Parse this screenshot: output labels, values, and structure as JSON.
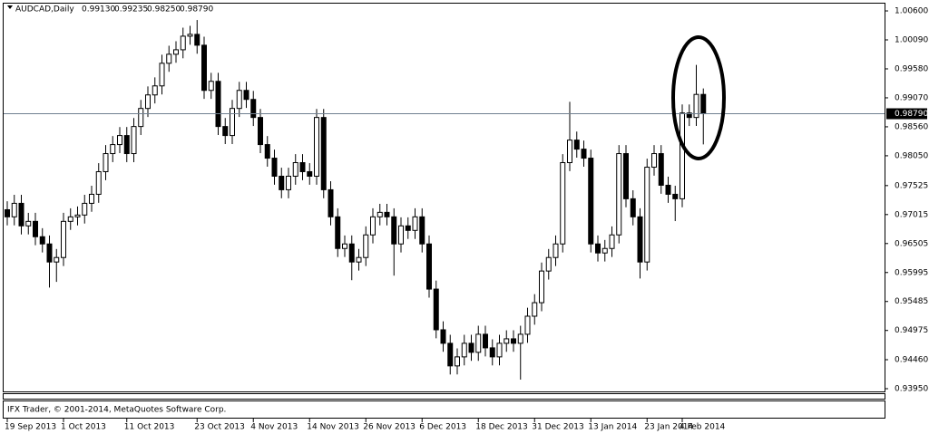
{
  "chart_data": {
    "type": "candlestick",
    "title": "AUDCAD,Daily",
    "header_values": [
      "0.99130",
      "0.99235",
      "0.98250",
      "0.98790"
    ],
    "footer": "IFX Trader, © 2001-2014, MetaQuotes Software Corp.",
    "current_price": {
      "value": 0.9879,
      "label": "0.98790"
    },
    "categories": [
      "19 Sep 2013",
      null,
      null,
      null,
      null,
      null,
      null,
      null,
      "1 Oct 2013",
      null,
      null,
      null,
      null,
      null,
      null,
      null,
      null,
      "11 Oct 2013",
      null,
      null,
      null,
      null,
      null,
      null,
      null,
      null,
      null,
      "23 Oct 2013",
      null,
      null,
      null,
      null,
      null,
      null,
      null,
      "4 Nov 2013",
      null,
      null,
      null,
      null,
      null,
      null,
      null,
      "14 Nov 2013",
      null,
      null,
      null,
      null,
      null,
      null,
      null,
      "26 Nov 2013",
      null,
      null,
      null,
      null,
      null,
      null,
      null,
      "6 Dec 2013",
      null,
      null,
      null,
      null,
      null,
      null,
      null,
      "18 Dec 2013",
      null,
      null,
      null,
      null,
      null,
      null,
      null,
      "31 Dec 2013",
      null,
      null,
      null,
      null,
      null,
      null,
      null,
      "13 Jan 2014",
      null,
      null,
      null,
      null,
      null,
      null,
      null,
      "23 Jan 2014",
      null,
      null,
      null,
      null,
      "4 Feb 2014",
      null,
      null,
      null
    ],
    "open": [
      0.971,
      0.96975,
      0.97213,
      0.96816,
      0.96895,
      0.96625,
      0.96498,
      0.9618,
      0.96259,
      0.96895,
      0.96975,
      0.97007,
      0.97213,
      0.97372,
      0.9777,
      0.98088,
      0.98247,
      0.98406,
      0.98088,
      0.98565,
      0.98883,
      0.99121,
      0.9928,
      0.99678,
      0.99837,
      0.99916,
      1.00155,
      1.00187,
      0.99996,
      0.99201,
      0.9936,
      0.98565,
      0.98406,
      0.98883,
      0.99201,
      0.99042,
      0.98724,
      0.98247,
      0.98008,
      0.9769,
      0.97452,
      0.9769,
      0.97929,
      0.9777,
      0.9769,
      0.98724,
      0.97452,
      0.96975,
      0.96418,
      0.96498,
      0.9618,
      0.96259,
      0.96657,
      0.96975,
      0.97054,
      0.96975,
      0.96498,
      0.96816,
      0.96736,
      0.96975,
      0.96498,
      0.95703,
      0.94987,
      0.94749,
      0.94351,
      0.9451,
      0.94749,
      0.9459,
      0.94908,
      0.94669,
      0.9451,
      0.94749,
      0.94828,
      0.94749,
      0.94908,
      0.95226,
      0.95464,
      0.96021,
      0.96259,
      0.96498,
      0.97929,
      0.98326,
      0.98167,
      0.98008,
      0.96498,
      0.96339,
      0.96418,
      0.96657,
      0.98088,
      0.97293,
      0.96975,
      0.9618,
      0.97849,
      0.98088,
      0.97531,
      0.97372,
      0.97293,
      0.98803,
      0.98724,
      0.9913
    ],
    "high": [
      0.9725,
      0.97363,
      0.97363,
      0.97045,
      0.97045,
      0.96775,
      0.96648,
      0.96409,
      0.97045,
      0.97125,
      0.97157,
      0.97363,
      0.97522,
      0.9792,
      0.98238,
      0.98397,
      0.98556,
      0.98556,
      0.98715,
      0.99033,
      0.99271,
      0.9943,
      0.99828,
      0.99987,
      1.00066,
      1.00305,
      1.00337,
      1.0044,
      1.00146,
      0.9951,
      0.9951,
      0.98715,
      0.99033,
      0.99351,
      0.99351,
      0.99192,
      0.98874,
      0.98397,
      0.98158,
      0.9784,
      0.9784,
      0.98079,
      0.98079,
      0.9792,
      0.98874,
      0.98874,
      0.97602,
      0.97125,
      0.96648,
      0.96648,
      0.96409,
      0.96807,
      0.97125,
      0.97204,
      0.97204,
      0.97125,
      0.96966,
      0.96966,
      0.97125,
      0.97125,
      0.96648,
      0.95853,
      0.95137,
      0.94899,
      0.9466,
      0.94899,
      0.94899,
      0.95058,
      0.95058,
      0.94819,
      0.94899,
      0.94978,
      0.94978,
      0.95058,
      0.95376,
      0.95614,
      0.96171,
      0.96409,
      0.96648,
      0.98079,
      0.99,
      0.98476,
      0.98317,
      0.98158,
      0.96648,
      0.96568,
      0.96807,
      0.98238,
      0.98238,
      0.97443,
      0.97125,
      0.97999,
      0.98238,
      0.98238,
      0.97681,
      0.97522,
      0.98953,
      0.98953,
      0.9965,
      0.99235
    ],
    "low": [
      0.96825,
      0.96825,
      0.96666,
      0.96666,
      0.96475,
      0.96348,
      0.9573,
      0.9583,
      0.96109,
      0.96745,
      0.96825,
      0.96857,
      0.97063,
      0.97222,
      0.9762,
      0.97938,
      0.98097,
      0.97938,
      0.97938,
      0.98415,
      0.98733,
      0.98971,
      0.9913,
      0.99528,
      0.99687,
      0.99766,
      1.00005,
      0.99846,
      0.99051,
      0.99051,
      0.98415,
      0.98256,
      0.98256,
      0.98733,
      0.98892,
      0.98574,
      0.98097,
      0.97858,
      0.9754,
      0.97302,
      0.97302,
      0.9754,
      0.9762,
      0.9754,
      0.9754,
      0.97302,
      0.96825,
      0.96268,
      0.96268,
      0.9586,
      0.9603,
      0.96109,
      0.96507,
      0.96825,
      0.96825,
      0.9594,
      0.96348,
      0.96586,
      0.96586,
      0.96348,
      0.95553,
      0.94837,
      0.94599,
      0.942,
      0.94201,
      0.9436,
      0.9444,
      0.9444,
      0.94519,
      0.9436,
      0.9436,
      0.94599,
      0.94599,
      0.9411,
      0.94758,
      0.95076,
      0.95314,
      0.95871,
      0.96109,
      0.96348,
      0.97779,
      0.98017,
      0.97858,
      0.96348,
      0.96189,
      0.96189,
      0.96268,
      0.96507,
      0.97143,
      0.96825,
      0.9589,
      0.9603,
      0.97699,
      0.97381,
      0.97222,
      0.969,
      0.97143,
      0.98574,
      0.98574,
      0.9825
    ],
    "close": [
      0.96975,
      0.97213,
      0.96816,
      0.96895,
      0.96625,
      0.96498,
      0.9618,
      0.96259,
      0.96895,
      0.96975,
      0.97007,
      0.97213,
      0.97372,
      0.9777,
      0.98088,
      0.98247,
      0.98406,
      0.98088,
      0.98565,
      0.98883,
      0.99121,
      0.9928,
      0.99678,
      0.99837,
      0.99916,
      1.00155,
      1.00187,
      0.99996,
      0.99201,
      0.9936,
      0.98565,
      0.98406,
      0.98883,
      0.99201,
      0.99042,
      0.98724,
      0.98247,
      0.98008,
      0.9769,
      0.97452,
      0.9769,
      0.97929,
      0.9777,
      0.9769,
      0.98724,
      0.97452,
      0.96975,
      0.96418,
      0.96498,
      0.9618,
      0.96259,
      0.96657,
      0.96975,
      0.97054,
      0.96975,
      0.96498,
      0.96816,
      0.96736,
      0.96975,
      0.96498,
      0.95703,
      0.94987,
      0.94749,
      0.94351,
      0.9451,
      0.94749,
      0.9459,
      0.94908,
      0.94669,
      0.9451,
      0.94749,
      0.94828,
      0.94749,
      0.94908,
      0.95226,
      0.95464,
      0.96021,
      0.96259,
      0.96498,
      0.97929,
      0.98326,
      0.98167,
      0.98008,
      0.96498,
      0.96339,
      0.96418,
      0.96657,
      0.98088,
      0.97293,
      0.96975,
      0.9618,
      0.97849,
      0.98088,
      0.97531,
      0.97372,
      0.97293,
      0.98803,
      0.98724,
      0.9913,
      0.9879
    ],
    "ylim": [
      0.93902,
      1.00744
    ],
    "yticks": [
      {
        "value": 1.006,
        "label": "1.00600"
      },
      {
        "value": 1.0009,
        "label": "1.00090"
      },
      {
        "value": 0.9958,
        "label": "0.99580"
      },
      {
        "value": 0.9907,
        "label": "0.99070"
      },
      {
        "value": 0.9856,
        "label": "0.98560"
      },
      {
        "value": 0.9805,
        "label": "0.98050"
      },
      {
        "value": 0.97525,
        "label": "0.97525"
      },
      {
        "value": 0.97015,
        "label": "0.97015"
      },
      {
        "value": 0.96505,
        "label": "0.96505"
      },
      {
        "value": 0.95995,
        "label": "0.95995"
      },
      {
        "value": 0.95485,
        "label": "0.95485"
      },
      {
        "value": 0.94975,
        "label": "0.94975"
      },
      {
        "value": 0.9446,
        "label": "0.94460"
      },
      {
        "value": 0.9395,
        "label": "0.93950"
      }
    ],
    "bull_color": "#ffffff",
    "bear_color": "#000000",
    "grid": false
  }
}
